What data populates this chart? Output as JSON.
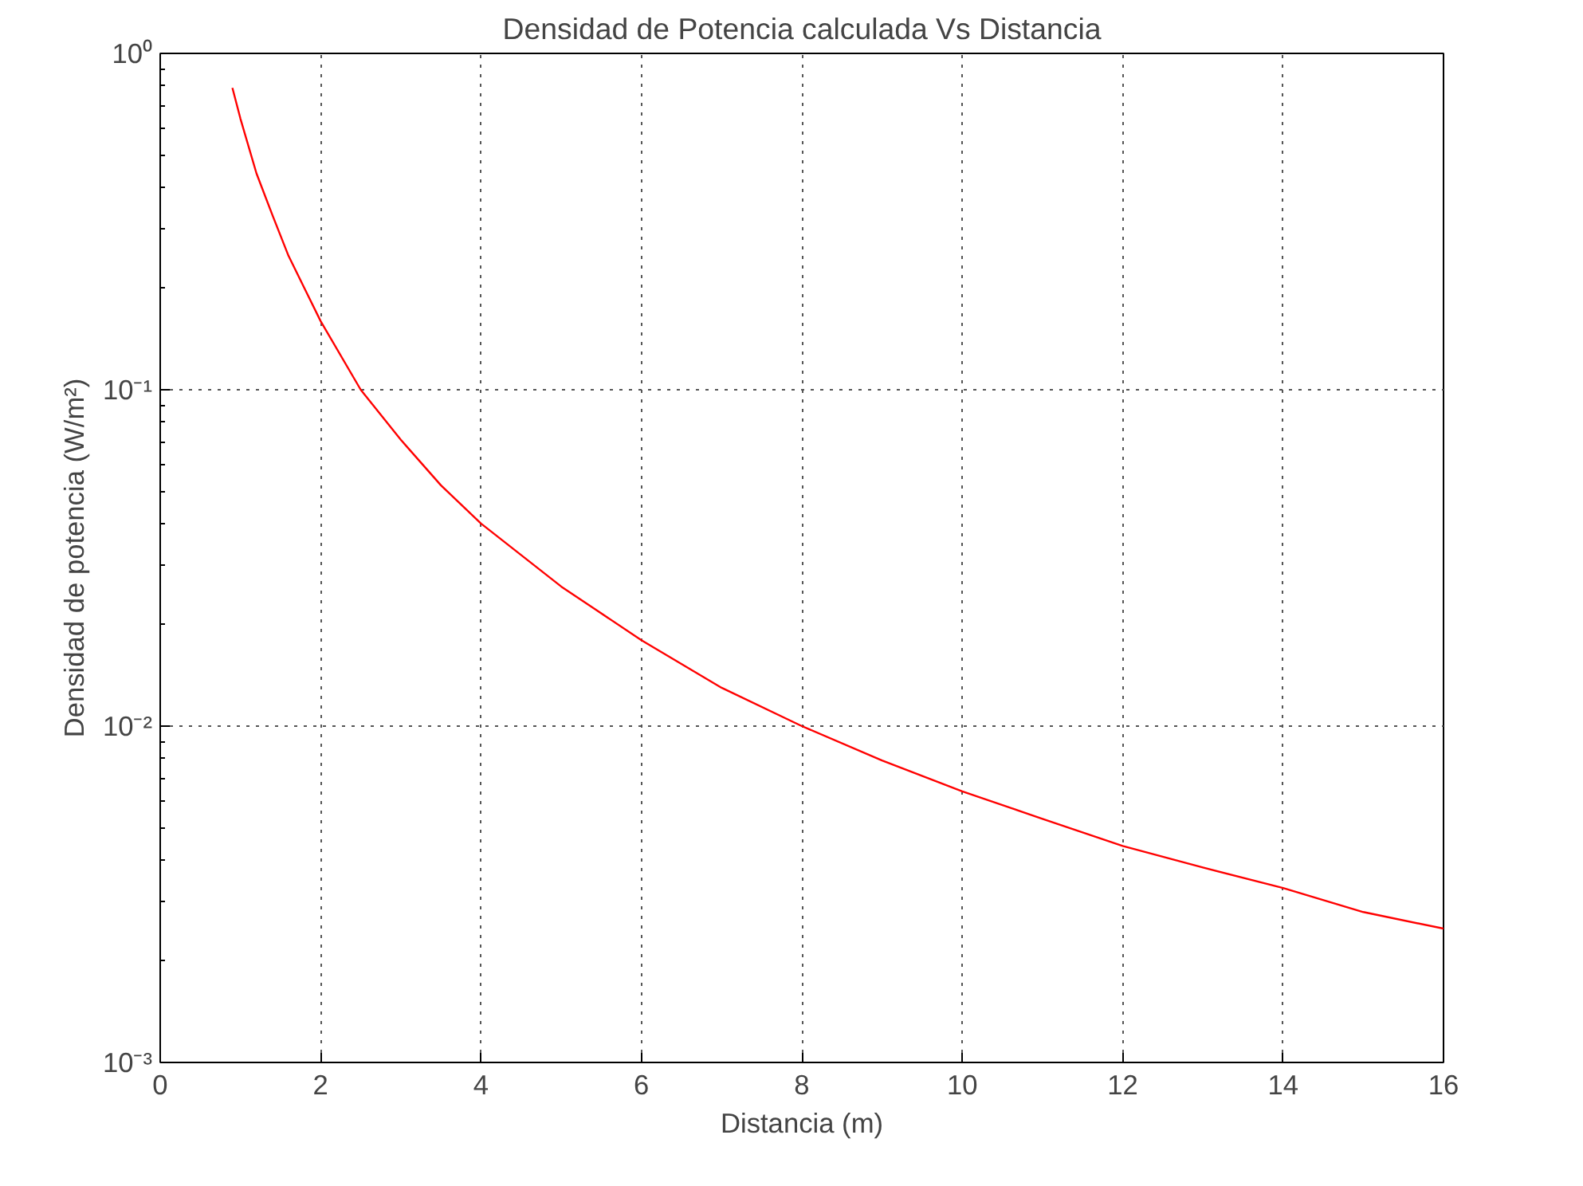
{
  "chart_data": {
    "type": "line",
    "title": "Densidad de Potencia calculada Vs Distancia",
    "xlabel": "Distancia (m)",
    "ylabel": "Densidad de potencia (W/m²)",
    "x": [
      0.9,
      1,
      1.2,
      1.4,
      1.6,
      1.8,
      2,
      2.5,
      3,
      3.5,
      4,
      5,
      6,
      7,
      8,
      9,
      10,
      11,
      12,
      13,
      14,
      15,
      16
    ],
    "series": [
      {
        "color": "#ff0000",
        "values": [
          0.79,
          0.64,
          0.44,
          0.33,
          0.25,
          0.2,
          0.16,
          0.1,
          0.071,
          0.052,
          0.04,
          0.026,
          0.018,
          0.013,
          0.01,
          0.0079,
          0.0064,
          0.0053,
          0.0044,
          0.0038,
          0.0033,
          0.0028,
          0.0025
        ]
      }
    ],
    "xlim": [
      0,
      16
    ],
    "xticks": [
      0,
      2,
      4,
      6,
      8,
      10,
      12,
      14,
      16
    ],
    "ylim": [
      0.001,
      1
    ],
    "yticks": [
      {
        "value": 0.001,
        "label": "10⁻³"
      },
      {
        "value": 0.01,
        "label": "10⁻²"
      },
      {
        "value": 0.1,
        "label": "10⁻¹"
      },
      {
        "value": 1,
        "label": "10⁰"
      }
    ],
    "log": "y",
    "grid": true,
    "line_style": "solid",
    "marker": "none"
  }
}
